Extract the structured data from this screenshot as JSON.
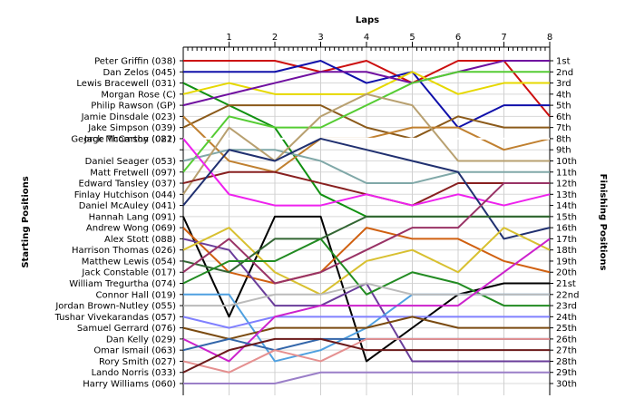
{
  "chart_data": {
    "type": "line",
    "title": "",
    "xlabel": "Laps",
    "ylabel_left": "Starting Positions",
    "ylabel_right": "Finishing Positions",
    "x": [
      0,
      1,
      2,
      3,
      4,
      5,
      6,
      7,
      8
    ],
    "x_tick_labels": [
      "1",
      "2",
      "3",
      "4",
      "5",
      "6",
      "7",
      "8"
    ],
    "ylim": [
      1,
      30
    ],
    "y_inverted": true,
    "grid": true,
    "finish_labels": [
      "1st",
      "2nd",
      "3rd",
      "4th",
      "5th",
      "6th",
      "7th",
      "8th",
      "9th",
      "10th",
      "11th",
      "12th",
      "13th",
      "14th",
      "15th",
      "16th",
      "17th",
      "18th",
      "19th",
      "20th",
      "21st",
      "22nd",
      "23rd",
      "24th",
      "25th",
      "26th",
      "27th",
      "28th",
      "29th",
      "30th"
    ],
    "series": [
      {
        "name": "Peter Griffin (038)",
        "color": "#cc1010",
        "positions": [
          1,
          1,
          1,
          2,
          1,
          3,
          1,
          1,
          6
        ]
      },
      {
        "name": "Dan Zelos (045)",
        "color": "#1010aa",
        "positions": [
          2,
          2,
          2,
          1,
          3,
          2,
          7,
          5,
          5
        ]
      },
      {
        "name": "Lewis Bracewell (031)",
        "color": "#109010",
        "positions": [
          3,
          5,
          7,
          13,
          15,
          15,
          15,
          15,
          15
        ]
      },
      {
        "name": "Morgan Rose (C)",
        "color": "#e6d800",
        "positions": [
          4,
          3,
          4,
          4,
          4,
          2,
          4,
          3,
          3
        ]
      },
      {
        "name": "Philip Rawson (GP)",
        "color": "#7010a0",
        "positions": [
          5,
          4,
          3,
          2,
          2,
          3,
          2,
          1,
          1
        ]
      },
      {
        "name": "Jake Simpson (039)",
        "color": "#8b5a1a",
        "positions": [
          7,
          5,
          5,
          5,
          7,
          8,
          6,
          7,
          7
        ]
      },
      {
        "name": "Jamie Dinsdale (023)",
        "color": "#c08030",
        "positions": [
          6,
          10,
          11,
          8,
          8,
          7,
          7,
          9,
          8
        ]
      },
      {
        "name": "Matt Fretwell (097)",
        "color": "#55cc33",
        "positions": [
          11,
          6,
          7,
          7,
          5,
          3,
          2,
          2,
          2
        ]
      },
      {
        "name": "Daniel Seager (053)",
        "color": "#80a8a8",
        "positions": [
          10,
          9,
          9,
          10,
          12,
          12,
          11,
          11,
          11
        ]
      },
      {
        "name": "Jack McCarthy (081)",
        "color": "#ffffff",
        "positions": [
          8,
          8,
          8,
          8,
          8,
          8,
          8,
          8,
          8
        ]
      },
      {
        "name": "Finlay Hutchison (044)",
        "color": "#b8a070",
        "positions": [
          13,
          7,
          10,
          6,
          4,
          5,
          10,
          10,
          10
        ]
      },
      {
        "name": "Edward Tansley (037)",
        "color": "#882020",
        "positions": [
          12,
          11,
          11,
          12,
          13,
          14,
          12,
          12,
          12
        ]
      },
      {
        "name": "George Thomson (022)",
        "color": "#ee22ee",
        "positions": [
          8,
          13,
          14,
          14,
          13,
          14,
          13,
          14,
          13
        ]
      },
      {
        "name": "Daniel McAuley (041)",
        "color": "#203070",
        "positions": [
          14,
          9,
          10,
          8,
          9,
          10,
          11,
          17,
          16
        ]
      },
      {
        "name": "Hannah Lang (091)",
        "color": "#000000",
        "positions": [
          15,
          24,
          15,
          15,
          28,
          25,
          22,
          21,
          21
        ]
      },
      {
        "name": "Andrew Wong (069)",
        "color": "#d06010",
        "positions": [
          16,
          20,
          21,
          20,
          16,
          17,
          17,
          19,
          20
        ]
      },
      {
        "name": "Alex Stott (088)",
        "color": "#6a3d9a",
        "positions": [
          17,
          18,
          23,
          23,
          21,
          28,
          28,
          28,
          28
        ]
      },
      {
        "name": "Harrison Thomas (026)",
        "color": "#d8c030",
        "positions": [
          18,
          16,
          20,
          22,
          19,
          18,
          20,
          16,
          18
        ]
      },
      {
        "name": "Matthew Lewis (054)",
        "color": "#336633",
        "positions": [
          19,
          20,
          17,
          17,
          15,
          15,
          15,
          15,
          15
        ]
      },
      {
        "name": "Jack Constable (017)",
        "color": "#993366",
        "positions": [
          20,
          17,
          21,
          20,
          18,
          16,
          16,
          12,
          12
        ]
      },
      {
        "name": "William Tregurtha (074)",
        "color": "#228b22",
        "positions": [
          21,
          19,
          19,
          17,
          22,
          20,
          21,
          23,
          23
        ]
      },
      {
        "name": "Connor Hall (019)",
        "color": "#4fa0e0",
        "positions": [
          22,
          22,
          28,
          27,
          25,
          22,
          22,
          22,
          22
        ]
      },
      {
        "name": "Jordan Brown-Nutley (055)",
        "color": "#bbbbbb",
        "positions": [
          23,
          23,
          22,
          22,
          21,
          22,
          22,
          22,
          22
        ]
      },
      {
        "name": "Tushar Vivekarandas (057)",
        "color": "#8080ff",
        "positions": [
          24,
          25,
          24,
          24,
          24,
          24,
          24,
          24,
          24
        ]
      },
      {
        "name": "Samuel Gerrard (076)",
        "color": "#7a4a10",
        "positions": [
          25,
          26,
          25,
          25,
          25,
          24,
          25,
          25,
          25
        ]
      },
      {
        "name": "Dan Kelly (029)",
        "color": "#cc22cc",
        "positions": [
          26,
          28,
          24,
          23,
          23,
          23,
          23,
          20,
          17
        ]
      },
      {
        "name": "Omar Ismail (063)",
        "color": "#3366aa",
        "positions": [
          27,
          26,
          27,
          26,
          26,
          26,
          26,
          26,
          26
        ]
      },
      {
        "name": "Rory Smith (027)",
        "color": "#e59090",
        "positions": [
          28,
          29,
          27,
          28,
          26,
          26,
          26,
          26,
          26
        ]
      },
      {
        "name": "Lando Norris (033)",
        "color": "#6b1a1a",
        "positions": [
          29,
          27,
          26,
          26,
          27,
          27,
          27,
          27,
          27
        ]
      },
      {
        "name": "Harry Williams (060)",
        "color": "#9b7fc8",
        "positions": [
          30,
          30,
          30,
          29,
          29,
          29,
          29,
          29,
          29
        ]
      }
    ]
  }
}
